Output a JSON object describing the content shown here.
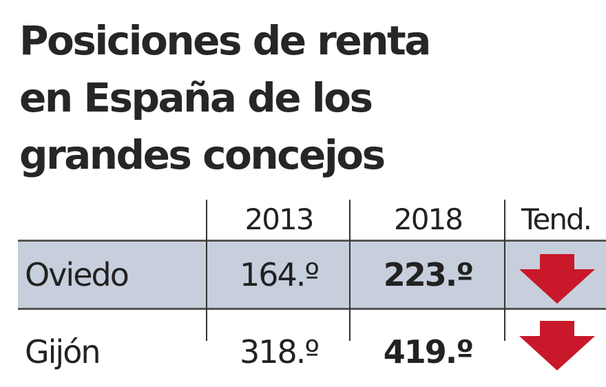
{
  "title": [
    "Posiciones de renta",
    "en España de los",
    "grandes concejos"
  ],
  "chart_data": {
    "type": "table",
    "columns": [
      "",
      "2013",
      "2018",
      "Tend."
    ],
    "rows": [
      {
        "name": "Oviedo",
        "y2013": "164.º",
        "y2018": "223.º",
        "trend": "down"
      },
      {
        "name": "Gijón",
        "y2013": "318.º",
        "y2018": "419.º",
        "trend": "down"
      }
    ]
  },
  "colors": {
    "row_shade": "#c7cfdc",
    "arrow": "#c8182a"
  }
}
